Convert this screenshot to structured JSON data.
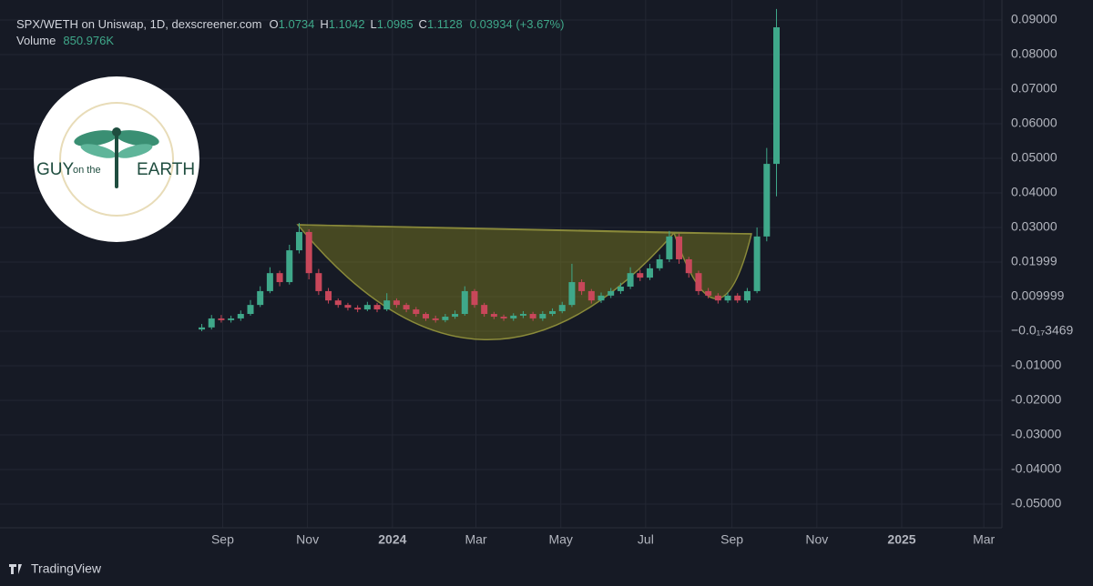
{
  "header": {
    "symbol": "SPX/WETH on Uniswap, 1D, dexscreener.com",
    "o_label": "O",
    "o_value": "1.0734",
    "h_label": "H",
    "h_value": "1.1042",
    "l_label": "L",
    "l_value": "1.0985",
    "c_label": "C",
    "c_value": "1.1128",
    "change": "0.03934 (+3.67%)",
    "volume_label": "Volume",
    "volume_value": "850.976K"
  },
  "logo": {
    "word1": "GUY",
    "word2": "on the",
    "word3": "EARTH"
  },
  "footer": {
    "brand": "TradingView"
  },
  "chart_data": {
    "type": "candlestick",
    "up_color": "#3fa88a",
    "down_color": "#c8475a",
    "grid": true,
    "x": [
      "2023-08-17",
      "2023-08-24",
      "2023-08-31",
      "2023-09-07",
      "2023-09-14",
      "2023-09-21",
      "2023-09-28",
      "2023-10-05",
      "2023-10-12",
      "2023-10-19",
      "2023-10-26",
      "2023-11-02",
      "2023-11-09",
      "2023-11-16",
      "2023-11-23",
      "2023-11-30",
      "2023-12-07",
      "2023-12-14",
      "2023-12-21",
      "2023-12-28",
      "2024-01-04",
      "2024-01-11",
      "2024-01-18",
      "2024-01-25",
      "2024-02-01",
      "2024-02-08",
      "2024-02-15",
      "2024-02-22",
      "2024-02-29",
      "2024-03-07",
      "2024-03-14",
      "2024-03-21",
      "2024-03-28",
      "2024-04-04",
      "2024-04-11",
      "2024-04-18",
      "2024-04-25",
      "2024-05-02",
      "2024-05-09",
      "2024-05-16",
      "2024-05-23",
      "2024-05-30",
      "2024-06-06",
      "2024-06-13",
      "2024-06-20",
      "2024-06-27",
      "2024-07-04",
      "2024-07-11",
      "2024-07-18",
      "2024-07-25",
      "2024-08-01",
      "2024-08-08",
      "2024-08-15",
      "2024-08-22",
      "2024-08-29",
      "2024-09-05",
      "2024-09-12",
      "2024-09-19",
      "2024-09-26",
      "2024-10-03"
    ],
    "open": [
      0.0005,
      0.0011,
      0.0037,
      0.0032,
      0.0037,
      0.005,
      0.0076,
      0.0116,
      0.0168,
      0.0142,
      0.0234,
      0.0287,
      0.0168,
      0.0116,
      0.0089,
      0.0076,
      0.0068,
      0.0063,
      0.0076,
      0.0063,
      0.0089,
      0.0076,
      0.0063,
      0.005,
      0.0037,
      0.0032,
      0.0042,
      0.005,
      0.0116,
      0.0076,
      0.005,
      0.0042,
      0.0037,
      0.0045,
      0.005,
      0.0037,
      0.005,
      0.0058,
      0.0076,
      0.0142,
      0.0116,
      0.0089,
      0.0103,
      0.0116,
      0.0129,
      0.0168,
      0.0155,
      0.0182,
      0.0208,
      0.0274,
      0.0208,
      0.0168,
      0.0116,
      0.0103,
      0.0089,
      0.0103,
      0.0089,
      0.0116,
      0.0274,
      0.0484
    ],
    "high": [
      0.0021,
      0.0047,
      0.0047,
      0.0045,
      0.006,
      0.009,
      0.013,
      0.0185,
      0.0175,
      0.025,
      0.0313,
      0.0295,
      0.018,
      0.0125,
      0.0095,
      0.0082,
      0.0075,
      0.0085,
      0.0082,
      0.011,
      0.0095,
      0.0082,
      0.007,
      0.0055,
      0.0045,
      0.005,
      0.006,
      0.013,
      0.0122,
      0.0082,
      0.0056,
      0.0048,
      0.0052,
      0.0058,
      0.0056,
      0.0058,
      0.0066,
      0.0085,
      0.0195,
      0.015,
      0.0122,
      0.0112,
      0.0125,
      0.014,
      0.0185,
      0.0178,
      0.0195,
      0.0222,
      0.029,
      0.0282,
      0.0215,
      0.0175,
      0.0125,
      0.011,
      0.0112,
      0.011,
      0.0125,
      0.03,
      0.053,
      0.0932
    ],
    "low": [
      0.0,
      0.0005,
      0.0025,
      0.0025,
      0.003,
      0.0045,
      0.007,
      0.011,
      0.013,
      0.0135,
      0.0225,
      0.015,
      0.0105,
      0.008,
      0.0068,
      0.006,
      0.0055,
      0.0058,
      0.0055,
      0.0058,
      0.0068,
      0.0055,
      0.0042,
      0.003,
      0.0025,
      0.0026,
      0.0036,
      0.0045,
      0.0068,
      0.0042,
      0.0035,
      0.003,
      0.003,
      0.0038,
      0.003,
      0.003,
      0.0044,
      0.0052,
      0.007,
      0.0105,
      0.008,
      0.0082,
      0.0096,
      0.0108,
      0.0122,
      0.0145,
      0.0148,
      0.0175,
      0.02,
      0.0195,
      0.0155,
      0.0105,
      0.0095,
      0.008,
      0.0082,
      0.0082,
      0.0082,
      0.011,
      0.026,
      0.039
    ],
    "close": [
      0.0011,
      0.0037,
      0.0032,
      0.0037,
      0.005,
      0.0076,
      0.0116,
      0.0168,
      0.0142,
      0.0234,
      0.0287,
      0.0168,
      0.0116,
      0.0089,
      0.0076,
      0.0068,
      0.0063,
      0.0076,
      0.0063,
      0.0089,
      0.0076,
      0.0063,
      0.005,
      0.0037,
      0.0032,
      0.0042,
      0.005,
      0.0116,
      0.0076,
      0.005,
      0.0042,
      0.0037,
      0.0045,
      0.005,
      0.0037,
      0.005,
      0.0058,
      0.0076,
      0.0142,
      0.0116,
      0.0089,
      0.0103,
      0.0116,
      0.0129,
      0.0168,
      0.0155,
      0.0182,
      0.0208,
      0.0274,
      0.0208,
      0.0168,
      0.0116,
      0.0103,
      0.0089,
      0.0103,
      0.0089,
      0.0116,
      0.0274,
      0.0484,
      0.0879
    ],
    "xlim": [
      "2023-03-25",
      "2025-03-14"
    ],
    "xticks": [
      {
        "value": "2023-09-01",
        "label": "Sep"
      },
      {
        "value": "2023-11-01",
        "label": "Nov"
      },
      {
        "value": "2024-01-01",
        "label": "2024"
      },
      {
        "value": "2024-03-01",
        "label": "Mar"
      },
      {
        "value": "2024-05-01",
        "label": "May"
      },
      {
        "value": "2024-07-01",
        "label": "Jul"
      },
      {
        "value": "2024-09-01",
        "label": "Sep"
      },
      {
        "value": "2024-11-01",
        "label": "Nov"
      },
      {
        "value": "2025-01-01",
        "label": "2025"
      },
      {
        "value": "2025-03-01",
        "label": "Mar"
      }
    ],
    "ylim": [
      -0.05684,
      0.09579
    ],
    "yticks": [
      {
        "value": 0.09,
        "label": "0.09000"
      },
      {
        "value": 0.08,
        "label": "0.08000"
      },
      {
        "value": 0.07,
        "label": "0.07000"
      },
      {
        "value": 0.06,
        "label": "0.06000"
      },
      {
        "value": 0.05,
        "label": "0.05000"
      },
      {
        "value": 0.04,
        "label": "0.04000"
      },
      {
        "value": 0.03,
        "label": "0.03000"
      },
      {
        "value": 0.01999,
        "label": "0.01999"
      },
      {
        "value": 0.009999,
        "label": "0.009999"
      },
      {
        "value": -3.469e-18,
        "label": "−0.0₁₇3469"
      },
      {
        "value": -0.01,
        "label": "-0.01000"
      },
      {
        "value": -0.02,
        "label": "-0.02000"
      },
      {
        "value": -0.03,
        "label": "-0.03000"
      },
      {
        "value": -0.04,
        "label": "-0.04000"
      },
      {
        "value": -0.05,
        "label": "-0.05000"
      }
    ]
  }
}
